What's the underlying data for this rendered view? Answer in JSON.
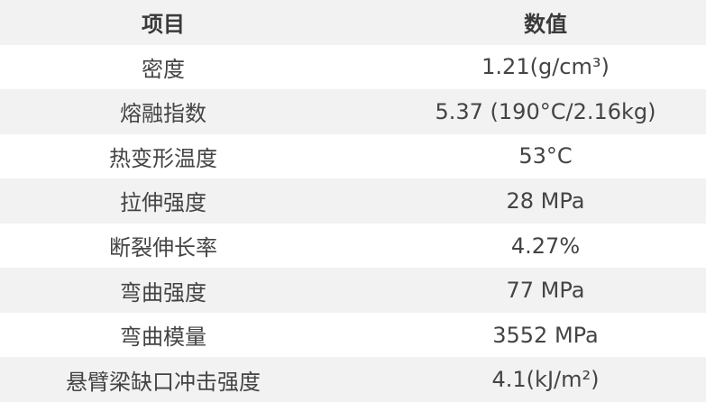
{
  "header": {
    "item": "项目",
    "value": "数值"
  },
  "rows": [
    {
      "item": "密度",
      "value": "1.21(g/cm³)"
    },
    {
      "item": "熔融指数",
      "value": "5.37 (190°C/2.16kg)"
    },
    {
      "item": "热变形温度",
      "value": "53°C"
    },
    {
      "item": "拉伸强度",
      "value": "28 MPa"
    },
    {
      "item": "断裂伸长率",
      "value": "4.27%"
    },
    {
      "item": "弯曲强度",
      "value": "77 MPa"
    },
    {
      "item": "弯曲模量",
      "value": "3552 MPa"
    },
    {
      "item": "悬臂梁缺口冲击强度",
      "value": "4.1(kJ/m²)"
    }
  ],
  "colors": {
    "header_bg": "#f2f2f2",
    "stripe_bg": "#f2f2f2",
    "row_bg": "#ffffff",
    "text": "#444444"
  }
}
